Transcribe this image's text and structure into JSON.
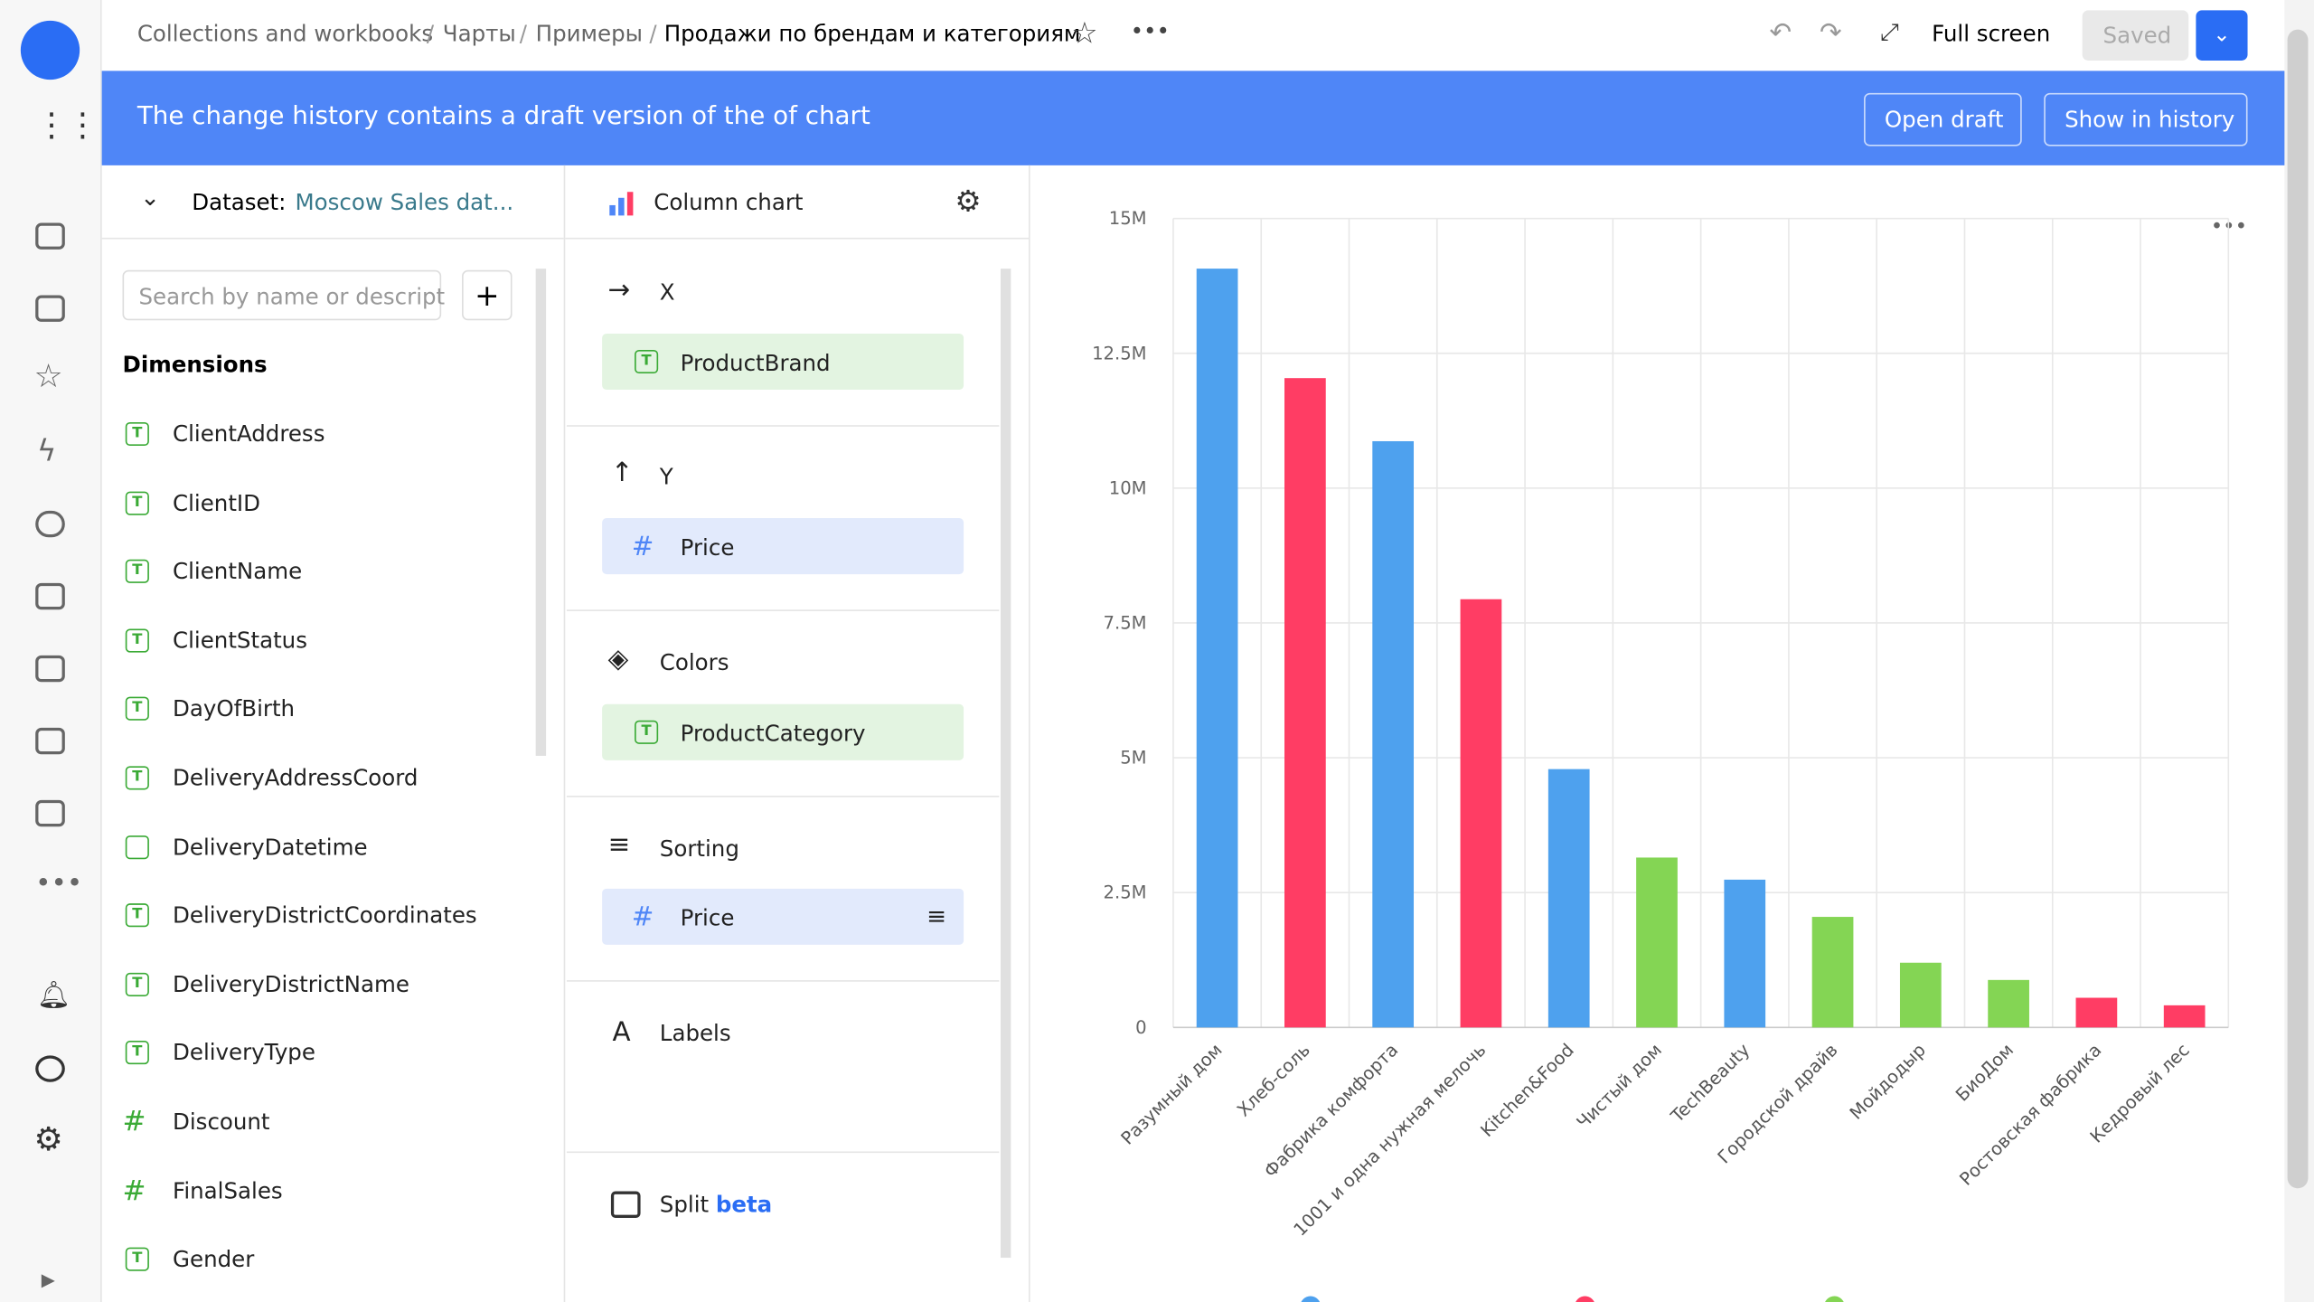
{
  "header": {
    "breadcrumbs": [
      "Collections and workbooks",
      "Чарты",
      "Примеры"
    ],
    "title": "Продажи по брендам и категориям",
    "fullscreen": "Full screen",
    "saved": "Saved"
  },
  "banner": {
    "text": "The change history contains a draft version of the of chart",
    "open_draft": "Open draft",
    "show_history": "Show in history"
  },
  "dataset": {
    "label": "Dataset:",
    "name": "Moscow Sales dat...",
    "search_placeholder": "Search by name or descript",
    "dimensions_title": "Dimensions",
    "fields": [
      "ClientAddress",
      "ClientID",
      "ClientName",
      "ClientStatus",
      "DayOfBirth",
      "DeliveryAddressCoord",
      "DeliveryDatetime",
      "DeliveryDistrictCoordinates",
      "DeliveryDistrictName",
      "DeliveryType",
      "Discount",
      "FinalSales",
      "Gender"
    ]
  },
  "wizard": {
    "chart_type": "Column chart",
    "x_title": "X",
    "x_item": "ProductBrand",
    "y_title": "Y",
    "y_item": "Price",
    "colors_title": "Colors",
    "colors_item": "ProductCategory",
    "sorting_title": "Sorting",
    "sorting_item": "Price",
    "labels_title": "Labels",
    "split": "Split",
    "beta": "beta"
  },
  "chart_data": {
    "type": "bar",
    "categories": [
      "Разумный дом",
      "Хлеб-соль",
      "Фабрика комфорта",
      "1001 и одна нужная мелочь",
      "Kitchen&Food",
      "Чистый дом",
      "TechBeauty",
      "Городской драйв",
      "Мойдодыр",
      "БиоДом",
      "Ростовская фабрика",
      "Кедровый лес"
    ],
    "values": [
      14070000,
      12040000,
      10870000,
      7940000,
      4790000,
      3150000,
      2740000,
      2050000,
      1200000,
      880000,
      550000,
      410000
    ],
    "colors": [
      "#4ea1ee",
      "#ff3d64",
      "#4ea1ee",
      "#ff3d64",
      "#4ea1ee",
      "#84d554",
      "#4ea1ee",
      "#84d554",
      "#84d554",
      "#84d554",
      "#ff3d64",
      "#ff3d64"
    ],
    "ylim": [
      0,
      15000000
    ],
    "yticks": [
      0,
      {
        "value": 2500000,
        "label": "2.5M"
      },
      {
        "value": 5000000,
        "label": "5M"
      },
      {
        "value": 7500000,
        "label": "7.5M"
      },
      {
        "value": 10000000,
        "label": "10M"
      },
      {
        "value": 12500000,
        "label": "12.5M"
      },
      {
        "value": 15000000,
        "label": "15M"
      }
    ],
    "grid": true
  }
}
